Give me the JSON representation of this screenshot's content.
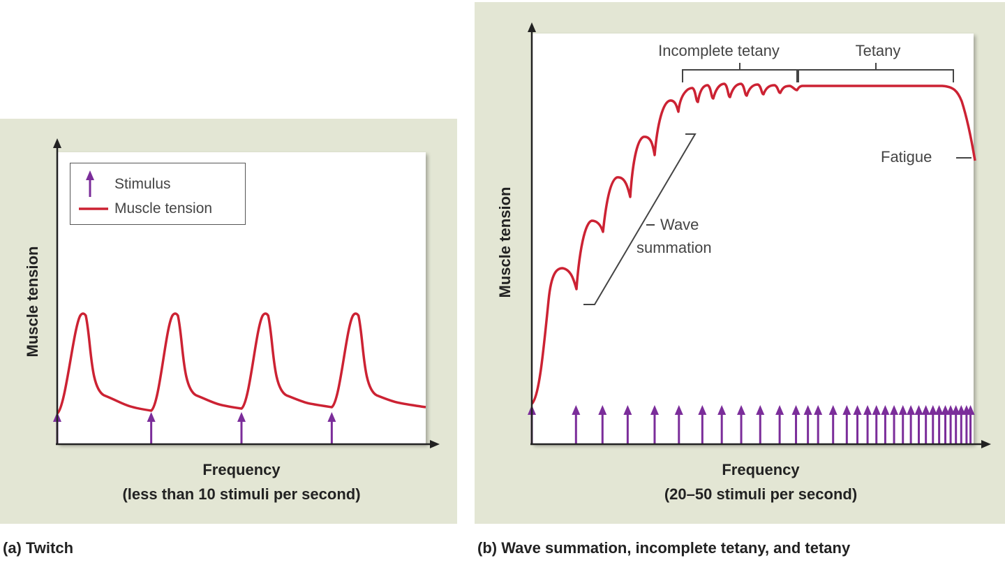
{
  "colors": {
    "panel": "#e3e6d4",
    "tension": "#cc2233",
    "stimulus": "#7b2d9a",
    "axis": "#222222",
    "annotation": "#444444"
  },
  "panel_a": {
    "caption": "(a) Twitch",
    "ylabel": "Muscle tension",
    "xlabel_line1": "Frequency",
    "xlabel_line2": "(less than 10 stimuli per second)",
    "legend": {
      "stimulus": "Stimulus",
      "tension": "Muscle tension"
    }
  },
  "panel_b": {
    "caption": "(b) Wave summation, incomplete tetany, and tetany",
    "ylabel": "Muscle tension",
    "xlabel_line1": "Frequency",
    "xlabel_line2": "(20–50 stimuli per second)",
    "annotations": {
      "incomplete_tetany": "Incomplete tetany",
      "tetany": "Tetany",
      "fatigue": "Fatigue",
      "wave_line1": "Wave",
      "wave_line2": "summation"
    }
  },
  "chart_data": [
    {
      "type": "line",
      "title": "(a) Twitch",
      "xlabel": "Frequency (less than 10 stimuli per second)",
      "ylabel": "Muscle tension",
      "legend": [
        "Stimulus",
        "Muscle tension"
      ],
      "legend_position": "top-left",
      "x_range": [
        0,
        1
      ],
      "y_range": [
        0,
        1
      ],
      "stimuli_x": [
        0.0,
        0.255,
        0.5,
        0.745
      ],
      "twitch_peaks_x": [
        0.07,
        0.32,
        0.565,
        0.81
      ],
      "baseline_y": 0.1,
      "peak_y": 0.43,
      "grid": false
    },
    {
      "type": "line",
      "title": "(b) Wave summation, incomplete tetany, and tetany",
      "xlabel": "Frequency (20–50 stimuli per second)",
      "ylabel": "Muscle tension",
      "x_range": [
        0,
        1
      ],
      "y_range": [
        0,
        1
      ],
      "stimuli_x": [
        0.0,
        0.1,
        0.16,
        0.217,
        0.278,
        0.333,
        0.386,
        0.43,
        0.474,
        0.517,
        0.561,
        0.598,
        0.625,
        0.648,
        0.682,
        0.713,
        0.737,
        0.76,
        0.78,
        0.8,
        0.82,
        0.84,
        0.858,
        0.876,
        0.892,
        0.908,
        0.922,
        0.936,
        0.948,
        0.96,
        0.972,
        0.984,
        0.993
      ],
      "wave_summation_troughs_y": [
        0.38,
        0.55,
        0.65,
        0.73,
        0.79,
        0.82
      ],
      "incomplete_tetany_x": [
        0.343,
        0.598
      ],
      "tetany_x": [
        0.598,
        0.955
      ],
      "tetany_y": 0.88,
      "fatigue_end_y": 0.7,
      "grid": false
    }
  ]
}
